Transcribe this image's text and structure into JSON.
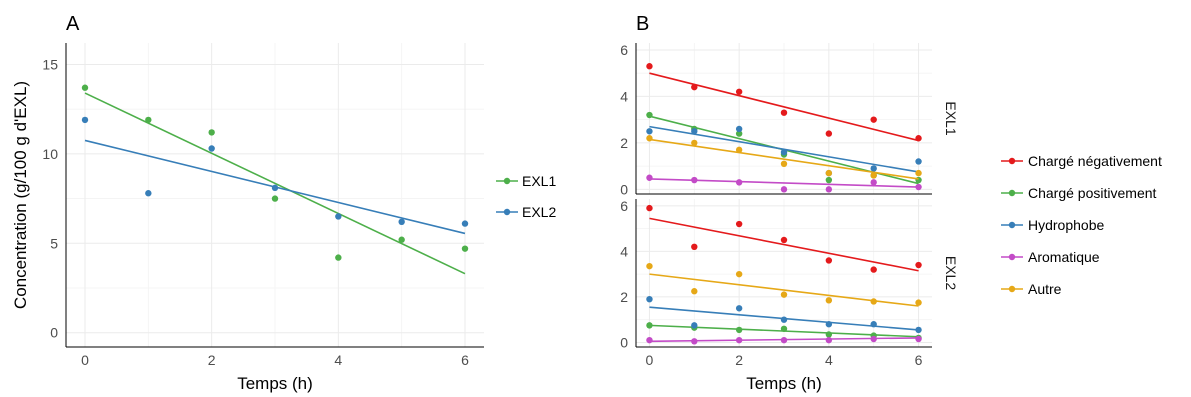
{
  "chart_data": [
    {
      "panel_label": "A",
      "type": "scatter",
      "xlabel": "Temps (h)",
      "ylabel": "Concentration (g/100 g d'EXL)",
      "xlim": [
        -0.3,
        6.3
      ],
      "ylim": [
        -0.8,
        16.2
      ],
      "x_ticks": [
        0,
        2,
        4,
        6
      ],
      "y_ticks": [
        0,
        5,
        10,
        15
      ],
      "grid": true,
      "legend_position": "right",
      "series": [
        {
          "name": "EXL1",
          "color": "#4DAF4A",
          "x": [
            0,
            1,
            2,
            3,
            4,
            5,
            6
          ],
          "y": [
            13.7,
            11.9,
            11.2,
            7.5,
            4.2,
            5.2,
            4.7
          ],
          "fit_line": [
            13.4,
            3.3
          ]
        },
        {
          "name": "EXL2",
          "color": "#377EB8",
          "x": [
            0,
            1,
            2,
            3,
            4,
            5,
            6
          ],
          "y": [
            11.9,
            7.8,
            10.3,
            8.1,
            6.5,
            6.2,
            6.1
          ],
          "fit_line": [
            10.75,
            5.55
          ]
        }
      ]
    },
    {
      "panel_label": "B",
      "type": "scatter",
      "xlabel": "Temps (h)",
      "ylabel": "",
      "xlim": [
        -0.3,
        6.3
      ],
      "x_ticks": [
        0,
        2,
        4,
        6
      ],
      "grid": true,
      "legend_position": "right",
      "legend": [
        {
          "name": "Chargé négativement",
          "color": "#E41A1C"
        },
        {
          "name": "Chargé positivement",
          "color": "#4DAF4A"
        },
        {
          "name": "Hydrophobe",
          "color": "#377EB8"
        },
        {
          "name": "Aromatique",
          "color": "#C34BC7"
        },
        {
          "name": "Autre",
          "color": "#E6A817"
        }
      ],
      "facets": [
        {
          "strip": "EXL1",
          "ylim": [
            -0.2,
            6.3
          ],
          "y_ticks": [
            0,
            2,
            4,
            6
          ],
          "series": [
            {
              "name": "Chargé négativement",
              "y": [
                5.3,
                4.4,
                4.2,
                3.3,
                2.4,
                3.0,
                2.2
              ],
              "fit_line": [
                5.0,
                2.1
              ]
            },
            {
              "name": "Chargé positivement",
              "y": [
                3.2,
                2.6,
                2.4,
                1.5,
                0.4,
                0.6,
                0.4
              ],
              "fit_line": [
                3.15,
                0.25
              ]
            },
            {
              "name": "Hydrophobe",
              "y": [
                2.5,
                2.5,
                2.6,
                1.6,
                0.7,
                0.9,
                1.2
              ],
              "fit_line": [
                2.7,
                0.75
              ]
            },
            {
              "name": "Aromatique",
              "y": [
                0.5,
                0.4,
                0.3,
                0.0,
                0.0,
                0.3,
                0.1
              ],
              "fit_line": [
                0.45,
                0.1
              ]
            },
            {
              "name": "Autre",
              "y": [
                2.2,
                2.0,
                1.7,
                1.1,
                0.7,
                0.6,
                0.7
              ],
              "fit_line": [
                2.15,
                0.45
              ]
            }
          ]
        },
        {
          "strip": "EXL2",
          "ylim": [
            -0.2,
            6.3
          ],
          "y_ticks": [
            0,
            2,
            4,
            6
          ],
          "series": [
            {
              "name": "Chargé négativement",
              "y": [
                5.9,
                4.2,
                5.2,
                4.5,
                3.6,
                3.2,
                3.4
              ],
              "fit_line": [
                5.45,
                3.15
              ]
            },
            {
              "name": "Chargé positivement",
              "y": [
                0.75,
                0.65,
                0.55,
                0.6,
                0.35,
                0.3,
                0.2
              ],
              "fit_line": [
                0.75,
                0.25
              ]
            },
            {
              "name": "Hydrophobe",
              "y": [
                1.9,
                0.75,
                1.5,
                1.0,
                0.8,
                0.8,
                0.55
              ],
              "fit_line": [
                1.55,
                0.55
              ]
            },
            {
              "name": "Aromatique",
              "y": [
                0.1,
                0.05,
                0.1,
                0.1,
                0.1,
                0.15,
                0.15
              ],
              "fit_line": [
                0.05,
                0.2
              ]
            },
            {
              "name": "Autre",
              "y": [
                3.35,
                2.25,
                3.0,
                2.1,
                1.85,
                1.8,
                1.75
              ],
              "fit_line": [
                3.0,
                1.6
              ]
            }
          ]
        }
      ]
    }
  ]
}
